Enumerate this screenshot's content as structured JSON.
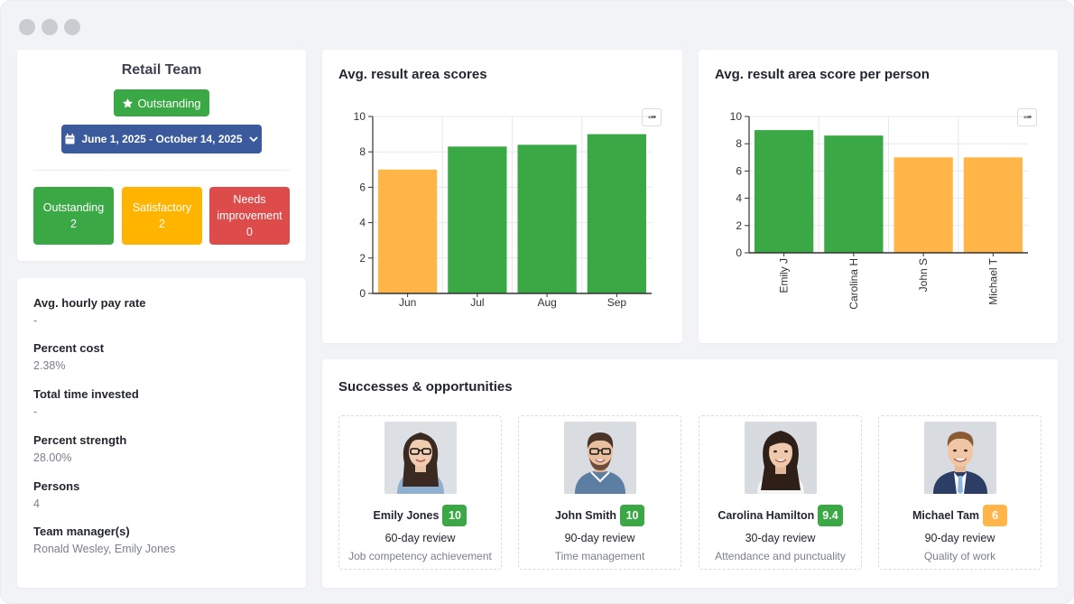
{
  "colors": {
    "green": "#39a845",
    "orange": "#ffb547",
    "yellow": "#ffb400",
    "red": "#de4b4b",
    "blue": "#3a5a9c"
  },
  "team": {
    "title": "Retail Team",
    "rating_label": "Outstanding",
    "rating_icon": "star-icon",
    "date_range": "June 1, 2025 - October 14, 2025",
    "stats": [
      {
        "label": "Outstanding",
        "count": "2",
        "color": "#39a845"
      },
      {
        "label": "Satisfactory",
        "count": "2",
        "color": "#ffb400"
      },
      {
        "label": "Needs improvement",
        "count": "0",
        "color": "#de4b4b"
      }
    ]
  },
  "info": [
    {
      "label": "Avg. hourly pay rate",
      "value": "-"
    },
    {
      "label": "Percent cost",
      "value": "2.38%"
    },
    {
      "label": "Total time invested",
      "value": "-"
    },
    {
      "label": "Percent strength",
      "value": "28.00%"
    },
    {
      "label": "Persons",
      "value": "4"
    },
    {
      "label": "Team manager(s)",
      "value": "Ronald Wesley, Emily Jones"
    }
  ],
  "chart_data": [
    {
      "type": "bar",
      "title": "Avg. result area scores",
      "categories": [
        "Jun",
        "Jul",
        "Aug",
        "Sep"
      ],
      "values": [
        7.0,
        8.3,
        8.4,
        9.0
      ],
      "bar_colors": [
        "#ffb547",
        "#39a845",
        "#39a845",
        "#39a845"
      ],
      "ylim": [
        0,
        10
      ],
      "yticks": [
        0,
        2,
        4,
        6,
        8,
        10
      ],
      "grid": true
    },
    {
      "type": "bar",
      "title": "Avg. result area score per person",
      "categories": [
        "Emily J",
        "Carolina H",
        "John S",
        "Michael T"
      ],
      "values": [
        9.0,
        8.6,
        7.0,
        7.0
      ],
      "bar_colors": [
        "#39a845",
        "#39a845",
        "#ffb547",
        "#ffb547"
      ],
      "ylim": [
        0,
        10
      ],
      "yticks": [
        0,
        2,
        4,
        6,
        8,
        10
      ],
      "grid": true
    }
  ],
  "successes": {
    "title": "Successes & opportunities",
    "people": [
      {
        "name": "Emily Jones",
        "score": "10",
        "score_color": "#39a845",
        "review": "60-day review",
        "area": "Job competency achievement"
      },
      {
        "name": "John Smith",
        "score": "10",
        "score_color": "#39a845",
        "review": "90-day review",
        "area": "Time management"
      },
      {
        "name": "Carolina Hamilton",
        "score": "9.4",
        "score_color": "#39a845",
        "review": "30-day review",
        "area": "Attendance and punctuality"
      },
      {
        "name": "Michael Tam",
        "score": "6",
        "score_color": "#ffb547",
        "review": "90-day review",
        "area": "Quality of work"
      }
    ]
  }
}
